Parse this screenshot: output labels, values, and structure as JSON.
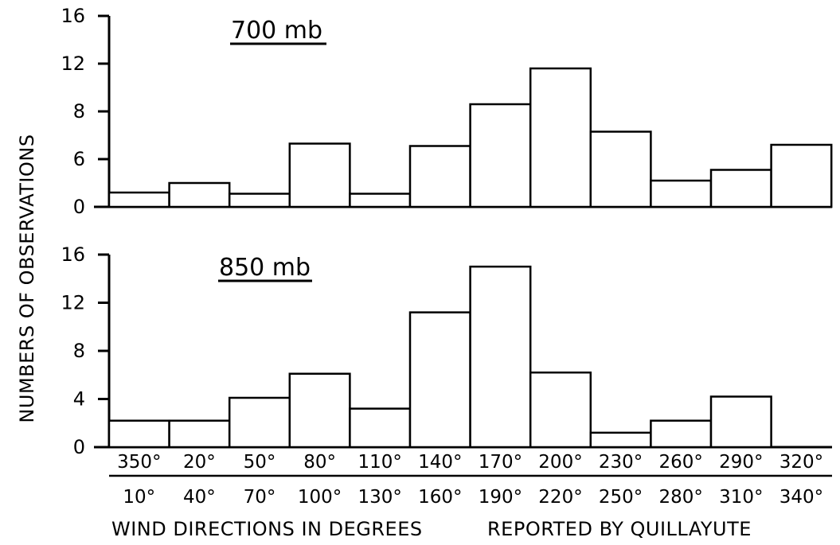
{
  "figure": {
    "ylabel": "NUMBERS OF OBSERVATIONS",
    "xlabel_left": "WIND DIRECTIONS IN DEGREES",
    "xlabel_right": "REPORTED BY QUILLAYUTE"
  },
  "chart_data": [
    {
      "type": "bar",
      "title": "700 mb",
      "categories": [
        "350°–10°",
        "20°–40°",
        "50°–70°",
        "80°–100°",
        "110°–130°",
        "140°–160°",
        "170°–190°",
        "200°–220°",
        "230°–250°",
        "260°–280°",
        "290°–310°",
        "320°–340°"
      ],
      "values": [
        1.2,
        2,
        1.1,
        5.3,
        1.1,
        5.1,
        8.6,
        11.6,
        6.3,
        2.2,
        3.1,
        5.2
      ],
      "ytick_labels": [
        "0",
        "6",
        "8",
        "12",
        "16"
      ],
      "ylim": [
        0,
        16
      ],
      "grid": false
    },
    {
      "type": "bar",
      "title": "850 mb",
      "categories": [
        "350°–10°",
        "20°–40°",
        "50°–70°",
        "80°–100°",
        "110°–130°",
        "140°–160°",
        "170°–190°",
        "200°–220°",
        "230°–250°",
        "260°–280°",
        "290°–310°",
        "320°–340°"
      ],
      "values": [
        2.2,
        2.2,
        4.1,
        6.1,
        3.2,
        11.2,
        15,
        6.2,
        1.2,
        2.2,
        4.2,
        0
      ],
      "ytick_labels": [
        "0",
        "4",
        "8",
        "12",
        "16"
      ],
      "ylim": [
        0,
        16
      ],
      "grid": false
    }
  ],
  "x_labels_top": [
    "350°",
    "20°",
    "50°",
    "80°",
    "110°",
    "140°",
    "170°",
    "200°",
    "230°",
    "260°",
    "290°",
    "320°"
  ],
  "x_labels_bottom": [
    "10°",
    "40°",
    "70°",
    "100°",
    "130°",
    "160°",
    "190°",
    "220°",
    "250°",
    "280°",
    "310°",
    "340°"
  ]
}
